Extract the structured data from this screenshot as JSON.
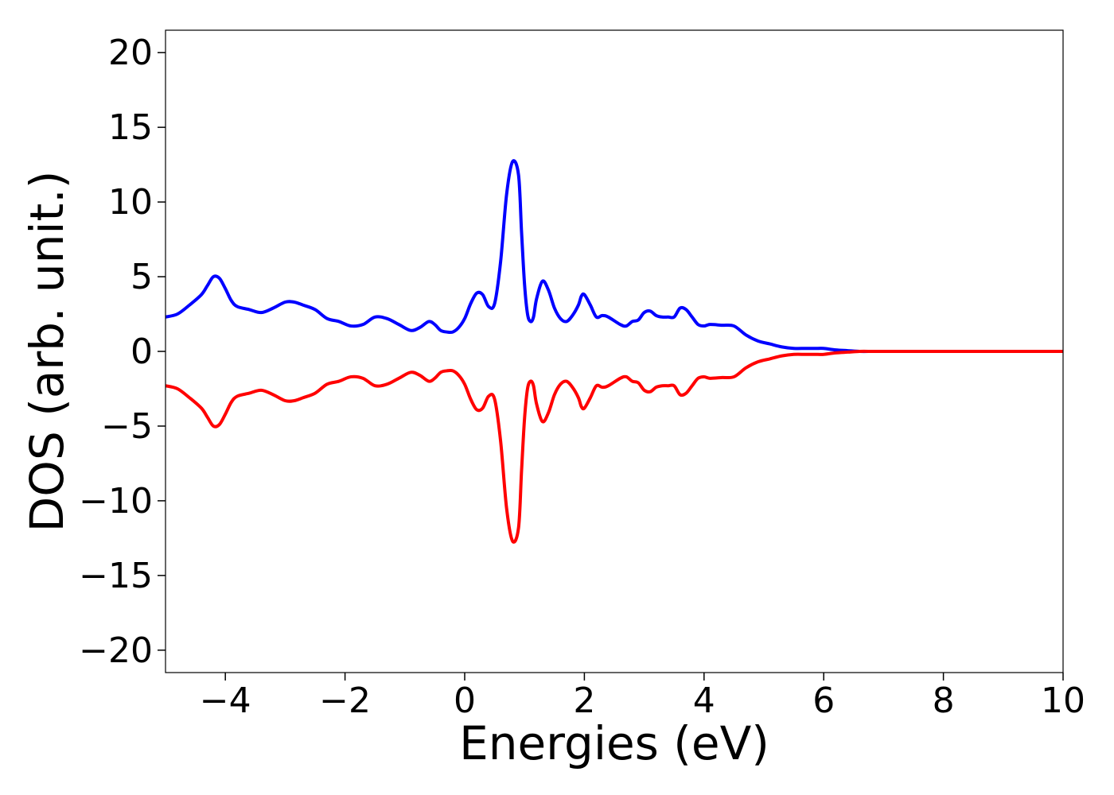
{
  "chart_data": {
    "type": "line",
    "title": "",
    "xlabel": "Energies (eV)",
    "ylabel": "DOS (arb. unit.)",
    "xlim": [
      -5,
      10
    ],
    "ylim": [
      -21.5,
      21.5
    ],
    "grid": false,
    "x_ticks": [
      {
        "value": -4,
        "label": "−4"
      },
      {
        "value": -2,
        "label": "−2"
      },
      {
        "value": 0,
        "label": "0"
      },
      {
        "value": 2,
        "label": "2"
      },
      {
        "value": 4,
        "label": "4"
      },
      {
        "value": 6,
        "label": "6"
      },
      {
        "value": 8,
        "label": "8"
      },
      {
        "value": 10,
        "label": "10"
      }
    ],
    "y_ticks": [
      {
        "value": 20,
        "label": "20"
      },
      {
        "value": 15,
        "label": "15"
      },
      {
        "value": 10,
        "label": "10"
      },
      {
        "value": 5,
        "label": "5"
      },
      {
        "value": 0,
        "label": "0"
      },
      {
        "value": -5,
        "label": "−5"
      },
      {
        "value": -10,
        "label": "−10"
      },
      {
        "value": -15,
        "label": "−15"
      },
      {
        "value": -20,
        "label": "−20"
      }
    ],
    "series": [
      {
        "color": "#0000ff",
        "x": [
          -5.0,
          -4.8,
          -4.6,
          -4.4,
          -4.3,
          -4.2,
          -4.1,
          -4.0,
          -3.9,
          -3.8,
          -3.6,
          -3.4,
          -3.2,
          -3.0,
          -2.85,
          -2.7,
          -2.5,
          -2.3,
          -2.1,
          -1.9,
          -1.7,
          -1.5,
          -1.3,
          -1.1,
          -0.9,
          -0.75,
          -0.6,
          -0.5,
          -0.4,
          -0.3,
          -0.2,
          -0.1,
          0.0,
          0.1,
          0.2,
          0.3,
          0.4,
          0.5,
          0.6,
          0.7,
          0.8,
          0.9,
          0.95,
          1.0,
          1.05,
          1.1,
          1.15,
          1.2,
          1.3,
          1.4,
          1.5,
          1.6,
          1.7,
          1.8,
          1.9,
          1.95,
          2.0,
          2.1,
          2.2,
          2.3,
          2.4,
          2.6,
          2.7,
          2.8,
          2.9,
          3.0,
          3.1,
          3.2,
          3.3,
          3.4,
          3.5,
          3.6,
          3.7,
          3.8,
          3.9,
          4.0,
          4.1,
          4.3,
          4.5,
          4.7,
          4.9,
          5.1,
          5.3,
          5.5,
          5.7,
          5.9,
          6.0,
          6.2,
          6.4,
          6.6,
          6.8,
          6.9,
          7.0,
          7.2,
          7.4,
          7.6,
          7.8,
          8.0,
          8.2,
          8.4,
          8.6,
          9.0,
          10.0
        ],
        "y": [
          2.3,
          2.5,
          3.1,
          3.8,
          4.4,
          5.0,
          4.9,
          4.2,
          3.4,
          3.0,
          2.8,
          2.6,
          2.9,
          3.3,
          3.3,
          3.1,
          2.8,
          2.2,
          2.0,
          1.7,
          1.8,
          2.3,
          2.2,
          1.8,
          1.4,
          1.6,
          2.0,
          1.8,
          1.4,
          1.3,
          1.3,
          1.6,
          2.2,
          3.2,
          3.9,
          3.8,
          3.0,
          3.2,
          6.0,
          10.5,
          12.7,
          11.8,
          8.0,
          4.5,
          2.5,
          2.0,
          2.3,
          3.5,
          4.7,
          4.1,
          2.9,
          2.2,
          2.0,
          2.4,
          3.1,
          3.7,
          3.8,
          3.1,
          2.3,
          2.4,
          2.3,
          1.8,
          1.7,
          2.0,
          2.1,
          2.6,
          2.7,
          2.4,
          2.3,
          2.3,
          2.3,
          2.9,
          2.8,
          2.3,
          1.8,
          1.7,
          1.8,
          1.75,
          1.7,
          1.1,
          0.7,
          0.5,
          0.3,
          0.2,
          0.2,
          0.2,
          0.2,
          0.1,
          0.05,
          0.0,
          0.0,
          0.0,
          0.0,
          0.0,
          0.0,
          0.0,
          0.0,
          0.0,
          0.0,
          0.0,
          0.0,
          0.0,
          0.0
        ]
      },
      {
        "color": "#ff0000",
        "x": [
          -5.0,
          -4.8,
          -4.6,
          -4.4,
          -4.3,
          -4.2,
          -4.1,
          -4.0,
          -3.9,
          -3.8,
          -3.6,
          -3.4,
          -3.2,
          -3.0,
          -2.85,
          -2.7,
          -2.5,
          -2.3,
          -2.1,
          -1.9,
          -1.7,
          -1.5,
          -1.3,
          -1.1,
          -0.9,
          -0.75,
          -0.6,
          -0.5,
          -0.4,
          -0.3,
          -0.2,
          -0.1,
          0.0,
          0.1,
          0.2,
          0.3,
          0.4,
          0.5,
          0.6,
          0.7,
          0.8,
          0.9,
          0.95,
          1.0,
          1.05,
          1.1,
          1.15,
          1.2,
          1.3,
          1.4,
          1.5,
          1.6,
          1.7,
          1.8,
          1.9,
          1.95,
          2.0,
          2.1,
          2.2,
          2.3,
          2.4,
          2.6,
          2.7,
          2.8,
          2.9,
          3.0,
          3.1,
          3.2,
          3.3,
          3.4,
          3.5,
          3.6,
          3.7,
          3.8,
          3.9,
          4.0,
          4.1,
          4.3,
          4.5,
          4.7,
          4.9,
          5.1,
          5.3,
          5.5,
          5.7,
          5.9,
          6.0,
          6.2,
          6.4,
          6.6,
          6.8,
          6.9,
          7.0,
          7.2,
          7.4,
          7.6,
          7.8,
          8.0,
          8.2,
          8.4,
          8.6,
          9.0,
          10.0
        ],
        "y": [
          -2.3,
          -2.5,
          -3.1,
          -3.8,
          -4.4,
          -5.0,
          -4.9,
          -4.2,
          -3.4,
          -3.0,
          -2.8,
          -2.6,
          -2.9,
          -3.3,
          -3.3,
          -3.1,
          -2.8,
          -2.2,
          -2.0,
          -1.7,
          -1.8,
          -2.3,
          -2.2,
          -1.8,
          -1.4,
          -1.6,
          -2.0,
          -1.8,
          -1.4,
          -1.3,
          -1.3,
          -1.6,
          -2.2,
          -3.2,
          -3.9,
          -3.8,
          -3.0,
          -3.2,
          -6.0,
          -10.5,
          -12.7,
          -11.8,
          -8.0,
          -4.5,
          -2.5,
          -2.0,
          -2.3,
          -3.5,
          -4.7,
          -4.1,
          -2.9,
          -2.2,
          -2.0,
          -2.4,
          -3.1,
          -3.7,
          -3.8,
          -3.1,
          -2.3,
          -2.4,
          -2.3,
          -1.8,
          -1.7,
          -2.0,
          -2.1,
          -2.6,
          -2.7,
          -2.4,
          -2.3,
          -2.3,
          -2.3,
          -2.9,
          -2.8,
          -2.3,
          -1.8,
          -1.7,
          -1.8,
          -1.75,
          -1.7,
          -1.1,
          -0.7,
          -0.5,
          -0.3,
          -0.2,
          -0.2,
          -0.2,
          -0.2,
          -0.1,
          -0.05,
          0.0,
          0.0,
          0.0,
          0.0,
          0.0,
          0.0,
          0.0,
          0.0,
          0.0,
          0.0,
          0.0,
          0.0,
          0.0,
          0.0
        ]
      }
    ]
  }
}
